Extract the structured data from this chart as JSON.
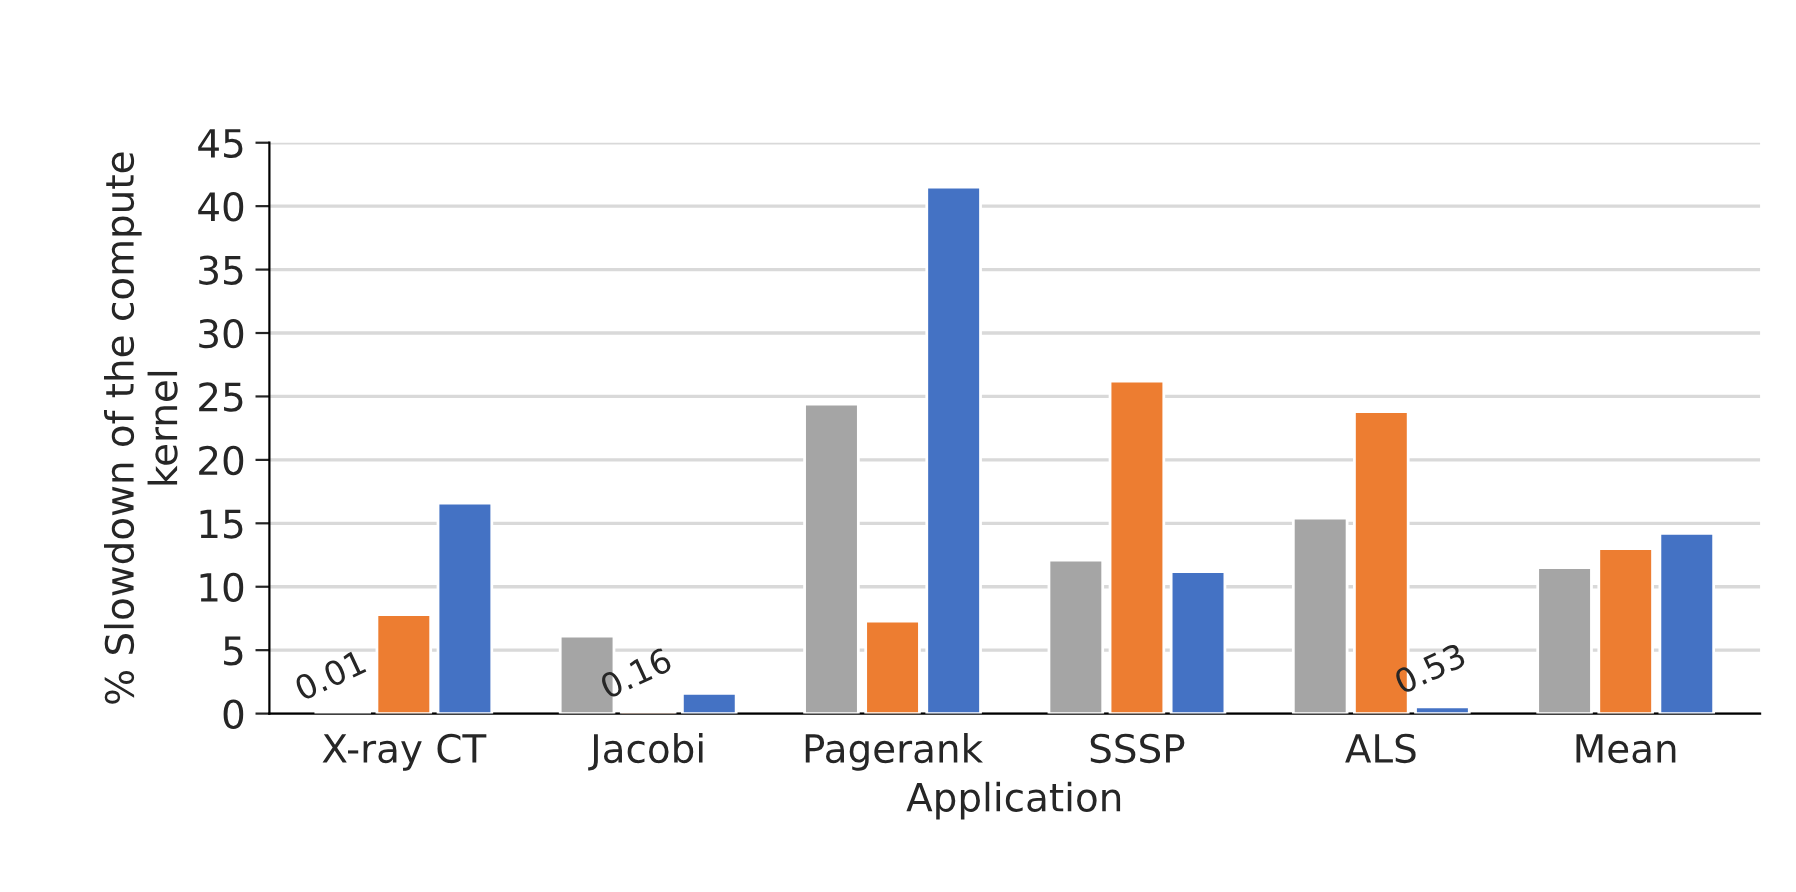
{
  "chart_data": {
    "type": "bar",
    "xlabel": "Application",
    "ylabel": "% Slowdown of the compute\nkernel",
    "categories": [
      "X-ray CT",
      "Jacobi",
      "Pagerank",
      "SSSP",
      "ALS",
      "Mean"
    ],
    "series": [
      {
        "color": "#a5a5a5",
        "values": [
          0.01,
          6.1,
          24.4,
          12.1,
          15.4,
          11.5
        ],
        "value_labels": [
          "0.01",
          null,
          null,
          null,
          null,
          null
        ]
      },
      {
        "color": "#ed7d31",
        "values": [
          7.8,
          0.16,
          7.3,
          26.2,
          23.8,
          13.0
        ],
        "value_labels": [
          null,
          "0.16",
          null,
          null,
          null,
          null
        ]
      },
      {
        "color": "#4472c4",
        "values": [
          16.6,
          1.6,
          41.5,
          11.2,
          0.53,
          14.2
        ],
        "value_labels": [
          null,
          null,
          null,
          null,
          "0.53",
          null
        ]
      }
    ],
    "ylim": [
      0,
      45
    ],
    "yticks": [
      0,
      5,
      10,
      15,
      20,
      25,
      30,
      35,
      40,
      45
    ],
    "grid": "y"
  }
}
